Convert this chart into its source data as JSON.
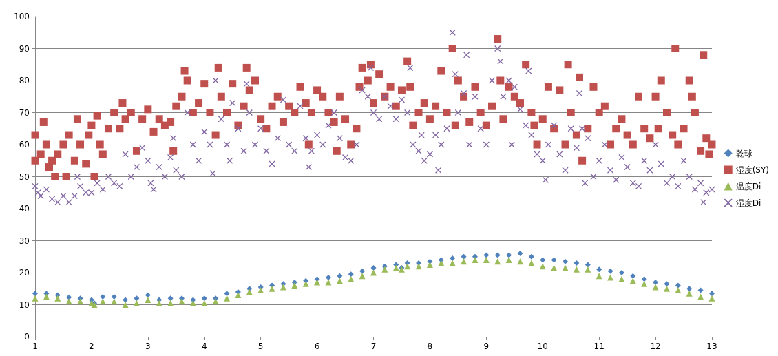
{
  "chart_data": {
    "type": "scatter",
    "xlim": [
      1,
      13
    ],
    "xticks": [
      1,
      2,
      3,
      4,
      5,
      6,
      7,
      8,
      9,
      10,
      11,
      12,
      13
    ],
    "ylim": [
      0,
      100
    ],
    "yticks": [
      0,
      10,
      20,
      30,
      40,
      50,
      60,
      70,
      80,
      90,
      100
    ],
    "grid": "y",
    "legend": "right",
    "series": [
      {
        "name": "乾球",
        "color": "#4f81bd",
        "marker": "diamond",
        "x": [
          1,
          1.2,
          1.4,
          1.6,
          1.8,
          2,
          2.05,
          2.2,
          2.4,
          2.6,
          2.8,
          3,
          3.2,
          3.4,
          3.6,
          3.8,
          4,
          4.2,
          4.4,
          4.6,
          4.8,
          5,
          5.2,
          5.4,
          5.6,
          5.8,
          6,
          6.2,
          6.4,
          6.6,
          6.8,
          7,
          7.2,
          7.4,
          7.5,
          7.6,
          7.8,
          8,
          8.2,
          8.4,
          8.6,
          8.8,
          9,
          9.2,
          9.4,
          9.6,
          9.8,
          10,
          10.2,
          10.4,
          10.6,
          10.8,
          11,
          11.2,
          11.4,
          11.6,
          11.8,
          12,
          12.2,
          12.4,
          12.6,
          12.8,
          13
        ],
        "values": [
          13.5,
          13.5,
          13,
          12.3,
          12,
          11.5,
          10.5,
          12.5,
          12.5,
          11.5,
          12,
          13,
          11.5,
          12,
          12,
          11.5,
          12,
          12,
          13.5,
          14,
          15,
          15.5,
          16,
          16.5,
          17,
          17.5,
          18,
          18.5,
          19,
          19.5,
          20.5,
          21.5,
          22,
          22.5,
          21.5,
          23,
          23,
          23.5,
          24,
          24.5,
          25,
          25,
          25.5,
          25.5,
          25.5,
          26,
          25,
          24,
          24,
          23.5,
          23,
          22.5,
          21,
          20.5,
          20,
          19,
          18,
          17,
          16.5,
          16,
          15,
          14.5,
          13.5
        ]
      },
      {
        "name": "湿度(SY)",
        "color": "#c0504d",
        "marker": "square",
        "x": [
          1,
          1,
          1.1,
          1.15,
          1.2,
          1.25,
          1.3,
          1.35,
          1.4,
          1.5,
          1.55,
          1.6,
          1.7,
          1.75,
          1.8,
          1.9,
          1.95,
          2,
          2.05,
          2.1,
          2.15,
          2.2,
          2.3,
          2.4,
          2.5,
          2.55,
          2.6,
          2.7,
          2.8,
          2.9,
          3,
          3.1,
          3.2,
          3.3,
          3.4,
          3.45,
          3.5,
          3.6,
          3.65,
          3.7,
          3.8,
          3.9,
          4,
          4.1,
          4.2,
          4.25,
          4.3,
          4.4,
          4.5,
          4.6,
          4.7,
          4.75,
          4.8,
          4.9,
          5,
          5.1,
          5.2,
          5.3,
          5.4,
          5.5,
          5.6,
          5.7,
          5.8,
          5.85,
          5.9,
          6,
          6.1,
          6.2,
          6.3,
          6.35,
          6.4,
          6.5,
          6.6,
          6.7,
          6.75,
          6.8,
          6.9,
          6.95,
          7,
          7.1,
          7.2,
          7.3,
          7.4,
          7.5,
          7.6,
          7.65,
          7.7,
          7.8,
          7.9,
          8,
          8.1,
          8.2,
          8.3,
          8.4,
          8.45,
          8.5,
          8.6,
          8.7,
          8.8,
          8.9,
          9,
          9.1,
          9.2,
          9.25,
          9.3,
          9.4,
          9.5,
          9.6,
          9.7,
          9.8,
          9.85,
          9.9,
          10,
          10.1,
          10.2,
          10.3,
          10.4,
          10.45,
          10.5,
          10.6,
          10.65,
          10.7,
          10.8,
          10.9,
          11,
          11.1,
          11.2,
          11.3,
          11.4,
          11.5,
          11.6,
          11.7,
          11.8,
          11.9,
          12,
          12.05,
          12.1,
          12.2,
          12.3,
          12.35,
          12.4,
          12.5,
          12.6,
          12.65,
          12.7,
          12.8,
          12.85,
          12.9,
          12.95,
          13
        ],
        "values": [
          55,
          63,
          57,
          67,
          60,
          53,
          55,
          50,
          57,
          60,
          50,
          63,
          55,
          68,
          60,
          54,
          63,
          66,
          50,
          69,
          60,
          57,
          65,
          70,
          65,
          73,
          68,
          70,
          58,
          68,
          71,
          64,
          68,
          66,
          67,
          58,
          72,
          75,
          83,
          80,
          70,
          73,
          79,
          70,
          63,
          84,
          75,
          70,
          79,
          66,
          72,
          84,
          77,
          80,
          68,
          65,
          72,
          75,
          67,
          72,
          70,
          78,
          73,
          60,
          70,
          77,
          75,
          70,
          67,
          58,
          75,
          68,
          60,
          65,
          78,
          84,
          80,
          85,
          73,
          82,
          75,
          78,
          72,
          77,
          86,
          78,
          66,
          70,
          73,
          68,
          72,
          83,
          70,
          90,
          66,
          80,
          75,
          67,
          78,
          70,
          66,
          72,
          93,
          80,
          68,
          78,
          75,
          73,
          85,
          70,
          66,
          60,
          68,
          78,
          65,
          77,
          60,
          85,
          70,
          63,
          81,
          55,
          65,
          78,
          70,
          72,
          60,
          65,
          68,
          63,
          60,
          75,
          65,
          62,
          75,
          65,
          80,
          70,
          63,
          90,
          60,
          65,
          80,
          75,
          70,
          58,
          88,
          62,
          57,
          60
        ]
      },
      {
        "name": "温度Di",
        "color": "#9bbb59",
        "marker": "triangle",
        "x": [
          1,
          1.2,
          1.4,
          1.6,
          1.8,
          2,
          2.05,
          2.2,
          2.4,
          2.6,
          2.8,
          3,
          3.2,
          3.4,
          3.6,
          3.8,
          4,
          4.2,
          4.4,
          4.6,
          4.8,
          5,
          5.2,
          5.4,
          5.6,
          5.8,
          6,
          6.2,
          6.4,
          6.6,
          6.8,
          7,
          7.2,
          7.4,
          7.5,
          7.6,
          7.8,
          8,
          8.2,
          8.4,
          8.6,
          8.8,
          9,
          9.2,
          9.4,
          9.6,
          9.8,
          10,
          10.2,
          10.4,
          10.6,
          10.8,
          11,
          11.2,
          11.4,
          11.6,
          11.8,
          12,
          12.2,
          12.4,
          12.6,
          12.8,
          13
        ],
        "values": [
          12,
          12.5,
          12,
          11,
          11,
          10.5,
          10,
          11,
          11,
          10,
          10.5,
          11.5,
          10.5,
          10.5,
          11,
          10.5,
          10.5,
          11,
          12,
          13,
          14,
          14.5,
          15,
          15.5,
          16,
          16.5,
          17,
          17,
          17.5,
          18,
          19,
          20,
          21,
          21.5,
          21,
          22,
          22,
          22.5,
          23,
          23,
          23.5,
          24,
          24,
          23.5,
          24,
          23.5,
          23,
          22,
          21.5,
          21.5,
          21,
          21,
          19,
          18.5,
          18,
          17.5,
          16.5,
          15.5,
          15,
          14.5,
          13.5,
          12.5,
          12
        ]
      },
      {
        "name": "湿度Di",
        "color": "#8064a2",
        "marker": "cross",
        "x": [
          1,
          1.05,
          1.1,
          1.2,
          1.3,
          1.4,
          1.5,
          1.6,
          1.7,
          1.75,
          1.8,
          1.9,
          2,
          2.1,
          2.2,
          2.3,
          2.4,
          2.5,
          2.6,
          2.7,
          2.8,
          2.9,
          3,
          3.05,
          3.1,
          3.2,
          3.3,
          3.4,
          3.45,
          3.5,
          3.6,
          3.7,
          3.8,
          3.9,
          4,
          4.1,
          4.15,
          4.2,
          4.3,
          4.4,
          4.45,
          4.5,
          4.6,
          4.7,
          4.75,
          4.8,
          4.9,
          5,
          5.1,
          5.2,
          5.3,
          5.4,
          5.5,
          5.6,
          5.7,
          5.8,
          5.85,
          5.9,
          6,
          6.1,
          6.2,
          6.3,
          6.4,
          6.5,
          6.6,
          6.7,
          6.8,
          6.9,
          6.95,
          7,
          7.1,
          7.2,
          7.3,
          7.4,
          7.5,
          7.6,
          7.65,
          7.7,
          7.8,
          7.85,
          7.9,
          8,
          8.1,
          8.15,
          8.2,
          8.3,
          8.4,
          8.45,
          8.5,
          8.6,
          8.65,
          8.7,
          8.8,
          8.9,
          9,
          9.1,
          9.2,
          9.25,
          9.3,
          9.4,
          9.45,
          9.5,
          9.6,
          9.7,
          9.75,
          9.8,
          9.9,
          10,
          10.05,
          10.1,
          10.2,
          10.3,
          10.4,
          10.5,
          10.6,
          10.65,
          10.7,
          10.75,
          10.8,
          10.9,
          11,
          11.1,
          11.2,
          11.3,
          11.4,
          11.5,
          11.6,
          11.7,
          11.8,
          11.9,
          12,
          12.1,
          12.2,
          12.3,
          12.4,
          12.5,
          12.6,
          12.7,
          12.8,
          12.85,
          12.9,
          13
        ],
        "values": [
          47,
          45,
          44,
          46,
          43,
          42,
          44,
          42,
          44,
          50,
          47,
          45,
          45,
          48,
          46,
          50,
          48,
          47,
          57,
          50,
          53,
          59,
          55,
          48,
          46,
          53,
          50,
          56,
          62,
          52,
          50,
          70,
          60,
          55,
          64,
          60,
          51,
          80,
          68,
          60,
          55,
          73,
          65,
          58,
          79,
          70,
          60,
          65,
          58,
          54,
          62,
          74,
          60,
          58,
          72,
          62,
          53,
          58,
          63,
          60,
          66,
          70,
          62,
          56,
          55,
          60,
          77,
          75,
          84,
          70,
          68,
          75,
          72,
          68,
          74,
          70,
          84,
          60,
          58,
          63,
          55,
          57,
          63,
          52,
          60,
          65,
          95,
          82,
          70,
          76,
          88,
          60,
          75,
          65,
          60,
          80,
          90,
          86,
          75,
          80,
          60,
          78,
          71,
          66,
          83,
          63,
          57,
          55,
          49,
          60,
          66,
          57,
          52,
          65,
          59,
          76,
          65,
          48,
          62,
          50,
          55,
          60,
          52,
          49,
          56,
          53,
          48,
          47,
          55,
          52,
          60,
          54,
          48,
          50,
          47,
          55,
          50,
          46,
          48,
          42,
          45,
          46
        ]
      }
    ]
  }
}
